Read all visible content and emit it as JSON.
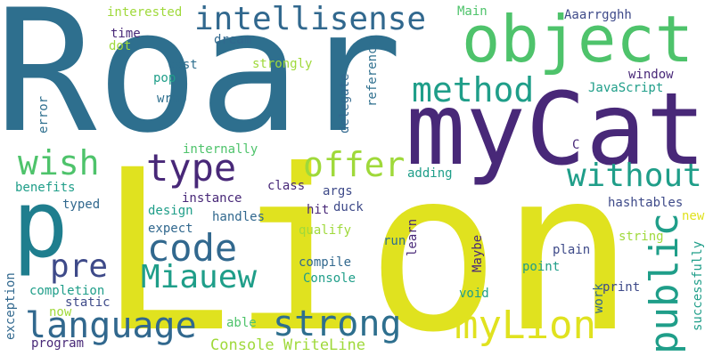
{
  "words": [
    "Roar",
    "Lion",
    "myCat",
    "object",
    "p",
    "intellisense",
    "method",
    "type",
    "code",
    "public",
    "wish",
    "offer",
    "without",
    "pre",
    "Miauew",
    "language",
    "strong",
    "myLion",
    "Console WriteLine",
    "Aaarrgghh",
    "interested",
    "Main",
    "time",
    "dot",
    "dream",
    "cast",
    "pop",
    "wrap",
    "strongly",
    "reference",
    "window",
    "JavaScript",
    "error",
    "delegate",
    "internally",
    "C",
    "adding",
    "benefits",
    "typed",
    "class",
    "args",
    "instance",
    "design",
    "handles",
    "hit",
    "duck",
    "hashtables",
    "expect",
    "qualify",
    "learn",
    "new",
    "string",
    "run",
    "Maybe",
    "plain",
    "compile",
    "point",
    "Console",
    "completion",
    "exception",
    "now",
    "static",
    "void",
    "work",
    "print",
    "successfully",
    "able",
    "program"
  ],
  "colors": {
    "teal": "#2e6f8e",
    "purple": "#482878",
    "yellow": "#e0e21f",
    "green": "#4ec36b",
    "lime": "#9fd93a",
    "cyan": "#1f9e89",
    "blue": "#31688e",
    "indigo": "#3e4a89"
  }
}
